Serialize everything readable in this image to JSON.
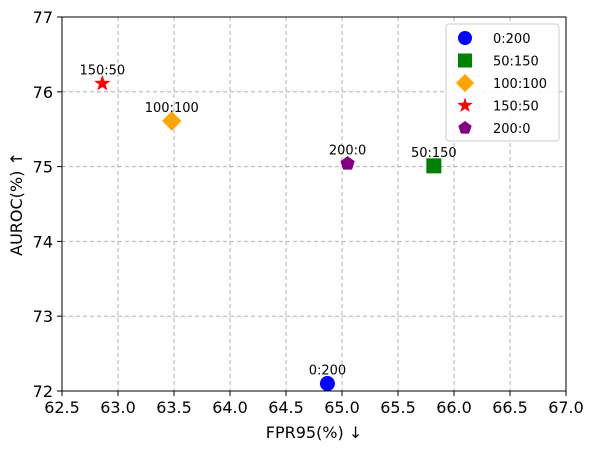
{
  "chart_data": {
    "type": "scatter",
    "xlabel": "FPR95(%) ↓",
    "ylabel": "AUROC(%) ↑",
    "xlim": [
      62.5,
      67.0
    ],
    "ylim": [
      72,
      77
    ],
    "xticks": [
      "62.5",
      "63.0",
      "63.5",
      "64.0",
      "64.5",
      "65.0",
      "65.5",
      "66.0",
      "66.5",
      "67.0"
    ],
    "yticks": [
      "72",
      "73",
      "74",
      "75",
      "76",
      "77"
    ],
    "grid": true,
    "legend_position": "top-right",
    "series": [
      {
        "name": "0:200",
        "label": "0:200",
        "x": 64.87,
        "y": 72.1,
        "color": "#0000ff",
        "marker": "circle"
      },
      {
        "name": "50:150",
        "label": "50:150",
        "x": 65.82,
        "y": 75.01,
        "color": "#008000",
        "marker": "square"
      },
      {
        "name": "100:100",
        "label": "100:100",
        "x": 63.48,
        "y": 75.61,
        "color": "#ffa500",
        "marker": "diamond"
      },
      {
        "name": "150:50",
        "label": "150:50",
        "x": 62.86,
        "y": 76.11,
        "color": "#ff0000",
        "marker": "star"
      },
      {
        "name": "200:0",
        "label": "200:0",
        "x": 65.05,
        "y": 75.04,
        "color": "#800080",
        "marker": "pentagon"
      }
    ]
  }
}
